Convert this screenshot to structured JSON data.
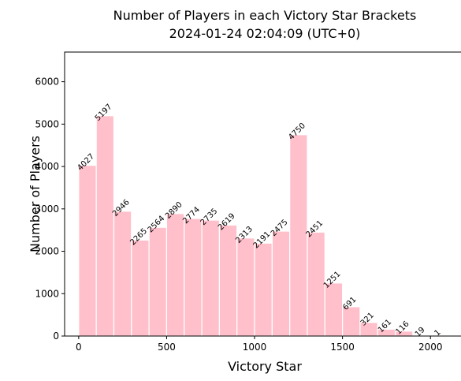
{
  "chart_data": {
    "type": "bar",
    "title": "Number of Players in each Victory Star Brackets",
    "subtitle": "2024-01-24 02:04:09 (UTC+0)",
    "xlabel": "Victory Star",
    "ylabel": "Number of Players",
    "bin_width": 100,
    "bin_starts": [
      0,
      100,
      200,
      300,
      400,
      500,
      600,
      700,
      800,
      900,
      1000,
      1100,
      1200,
      1300,
      1400,
      1500,
      1600,
      1700,
      1800,
      1900,
      2000
    ],
    "values": [
      4027,
      5197,
      2946,
      2265,
      2564,
      2890,
      2774,
      2735,
      2619,
      2313,
      2191,
      2475,
      4750,
      2451,
      1251,
      691,
      321,
      161,
      116,
      19,
      1
    ],
    "xlim": [
      -80,
      2120
    ],
    "ylim": [
      0,
      6700
    ],
    "xticks": [
      0,
      500,
      1000,
      1500,
      2000
    ],
    "yticks": [
      0,
      1000,
      2000,
      3000,
      4000,
      5000,
      6000
    ],
    "bar_color": "#ffc0cb",
    "grid": false
  }
}
